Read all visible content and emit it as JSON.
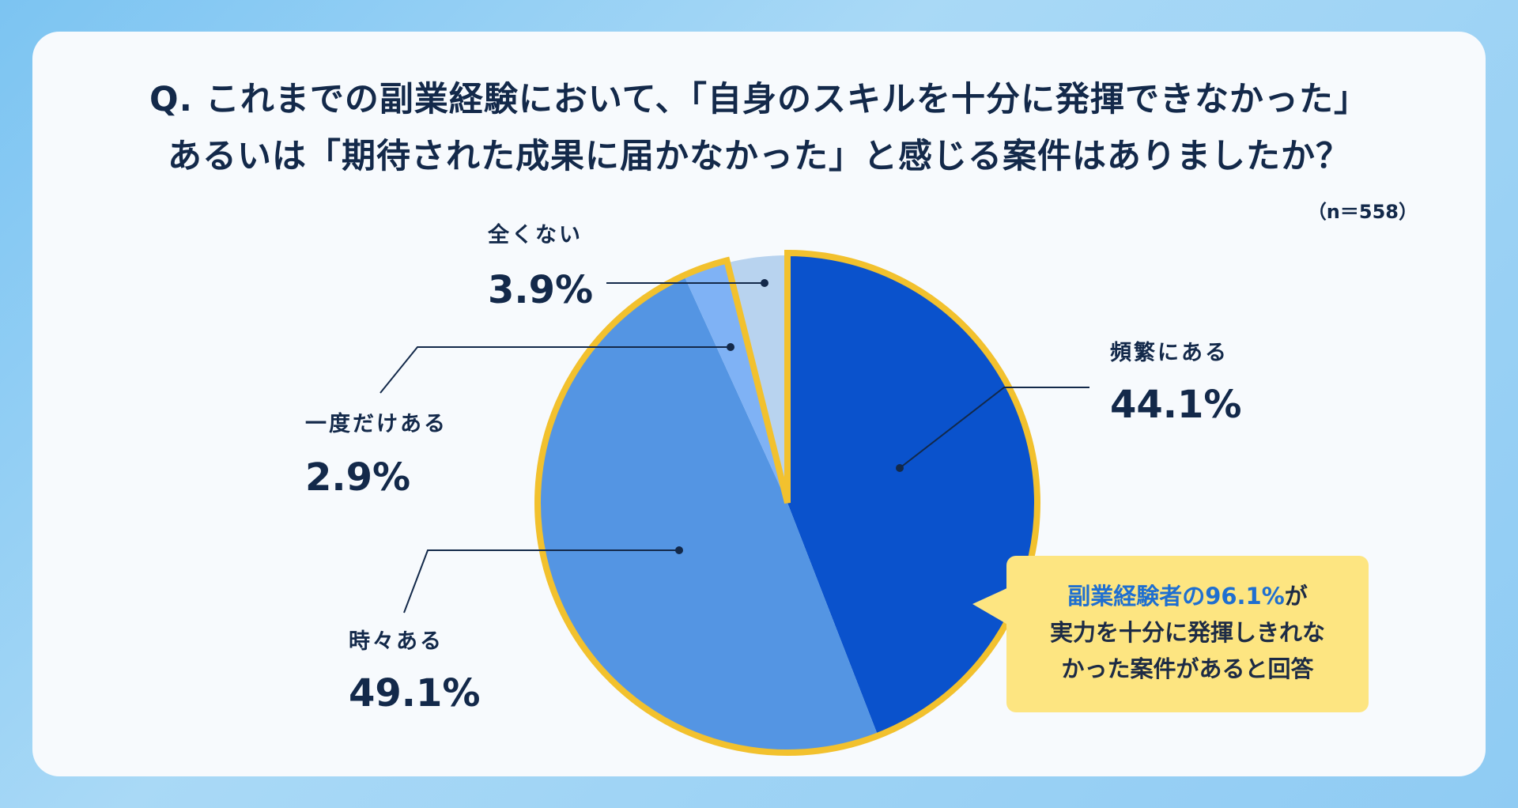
{
  "title": {
    "line1": "Q. これまでの副業経験において、「自身のスキルを十分に発揮できなかった」",
    "line2": "あるいは「期待された成果に届かなかった」と感じる案件はありましたか？"
  },
  "sample_size": "（n＝558）",
  "callout": {
    "highlight": "副業経験者の96.1%",
    "line1_rest": "が",
    "line2": "実力を十分に発揮しきれな",
    "line3": "かった案件があると回答"
  },
  "colors": {
    "slice_frequent": "#0a52cc",
    "slice_sometimes": "#5495e3",
    "slice_once": "#7fb2f5",
    "slice_never": "#b8d3ef",
    "highlight_outline": "#f2c12e",
    "label_text": "#13294a"
  },
  "chart_data": {
    "type": "pie",
    "title": "",
    "slices": [
      {
        "name": "頻繁にある",
        "value": 44.1,
        "label": "44.1%",
        "color": "#0a52cc",
        "highlighted": true
      },
      {
        "name": "時々ある",
        "value": 49.1,
        "label": "49.1%",
        "color": "#5495e3",
        "highlighted": true
      },
      {
        "name": "一度だけある",
        "value": 2.9,
        "label": "2.9%",
        "color": "#7fb2f5",
        "highlighted": true
      },
      {
        "name": "全くない",
        "value": 3.9,
        "label": "3.9%",
        "color": "#b8d3ef",
        "highlighted": false
      }
    ]
  }
}
